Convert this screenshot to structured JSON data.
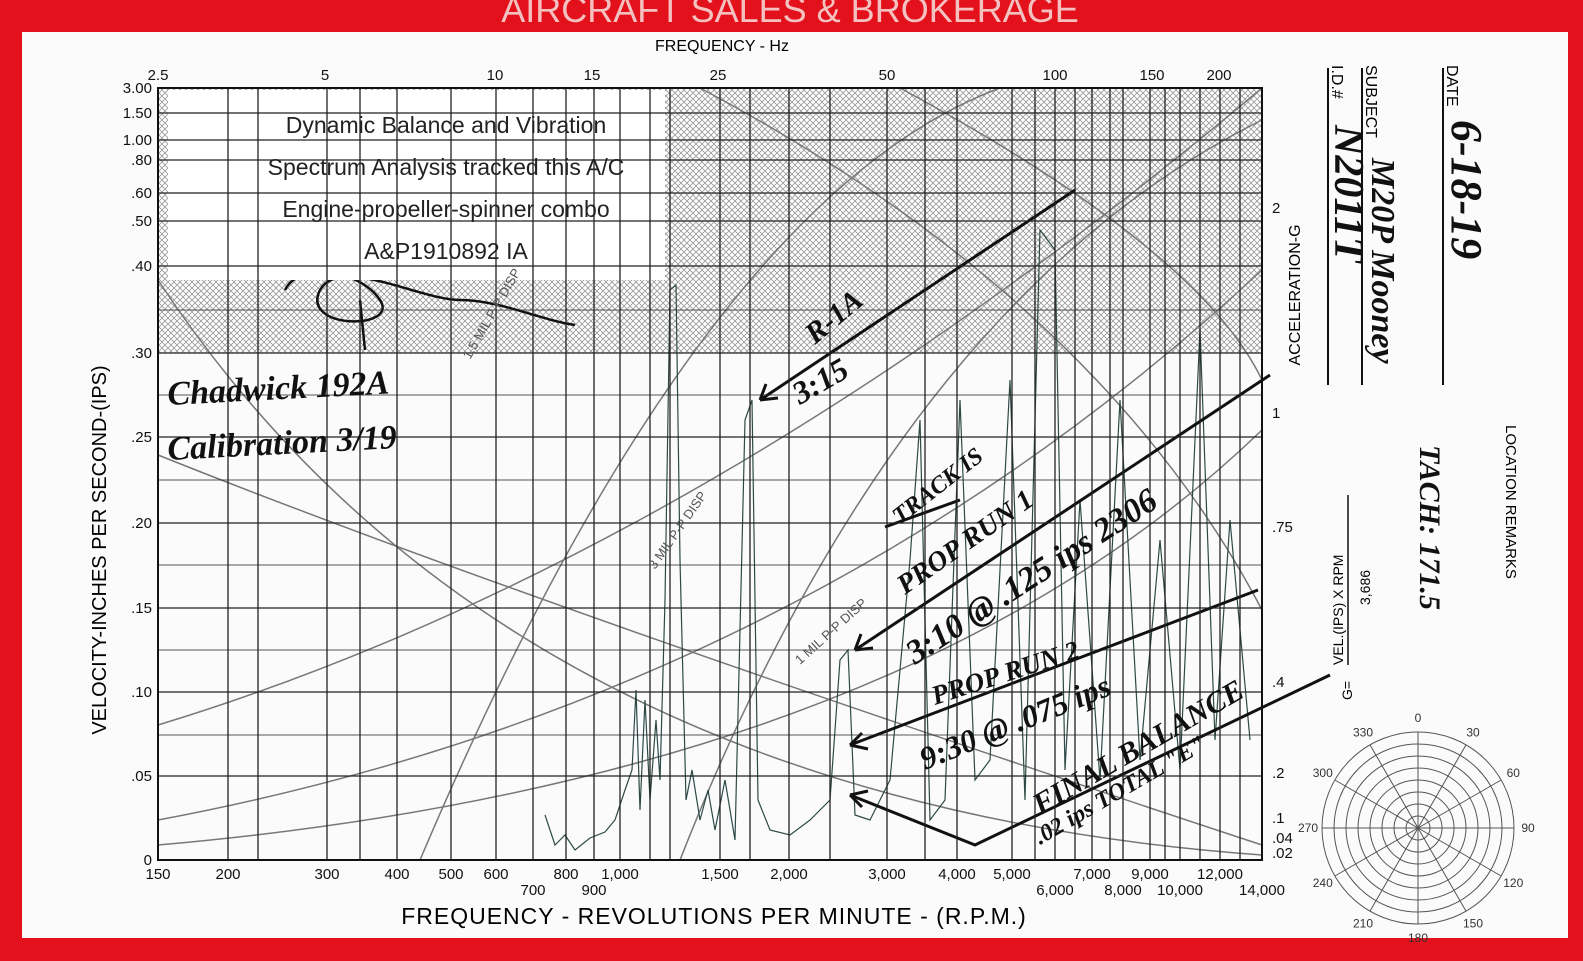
{
  "banner": "AIRCRAFT SALES & BROKERAGE",
  "chart": {
    "top_axis_title": "FREQUENCY - Hz",
    "top_ticks": [
      "2.5",
      "5",
      "10",
      "15",
      "25",
      "50",
      "100",
      "150",
      "200"
    ],
    "left_ticks": [
      "3.00",
      "1.50",
      "1.00",
      ".80",
      ".60",
      ".50",
      ".40",
      ".30",
      ".25",
      ".20",
      ".15",
      ".10",
      ".05",
      "0"
    ],
    "bottom_ticks": [
      "150",
      "200",
      "300",
      "400",
      "500",
      "600",
      "700",
      "800",
      "900",
      "1,000",
      "1,500",
      "2,000",
      "3,000",
      "4,000",
      "5,000",
      "6,000",
      "7,000",
      "8,000",
      "9,000",
      "10,000",
      "12,000",
      "14,000"
    ],
    "right_ticks": [
      "2",
      "1",
      ".75",
      ".4",
      ".2",
      ".1",
      ".04",
      ".02"
    ],
    "left_axis_title": "VELOCITY-INCHES PER SECOND-(IPS)",
    "right_axis_title": "ACCELERATION-G",
    "bottom_axis_title": "FREQUENCY - REVOLUTIONS PER MINUTE - (R.P.M.)",
    "curve_labels": [
      "3 MIL P-P DISP",
      "1 MIL P-P DISP",
      "1.5 MIL P-P DISP"
    ]
  },
  "note_box": {
    "lines": [
      "Dynamic Balance and Vibration",
      "Spectrum Analysis tracked this A/C",
      "Engine-propeller-spinner combo",
      "A&P1910892 IA"
    ]
  },
  "handwriting": {
    "calibration_1": "Chadwick 192A",
    "calibration_2": "Calibration 3/19",
    "run_1": "R-1A",
    "run_1_time": "3:15",
    "track": "TRACK IS",
    "prop_run_1": "PROP RUN 1",
    "prop_run_1_detail": "3:10 @ .125 ips 2306",
    "prop_run_2": "PROP RUN 2",
    "prop_run_2_detail": "9:30 @ .075 ips",
    "final": "FINAL BALANCE",
    "final_detail": ".02 ips TOTAL \"E\""
  },
  "form": {
    "date_label": "DATE",
    "date": "6-18-19",
    "subject_label": "SUBJECT",
    "subject": "M20P Mooney",
    "id_label": "I.D.#",
    "id": "N2011T",
    "tach": "TACH: 171.5",
    "location_remarks": "LOCATION REMARKS",
    "formula_prefix": "G=",
    "formula_numerator": "VEL.(IPS) X RPM",
    "formula_denominator": "3,686"
  },
  "polar_labels": [
    "0",
    "30",
    "60",
    "90",
    "120",
    "150",
    "180",
    "210",
    "240",
    "270",
    "300",
    "330"
  ]
}
